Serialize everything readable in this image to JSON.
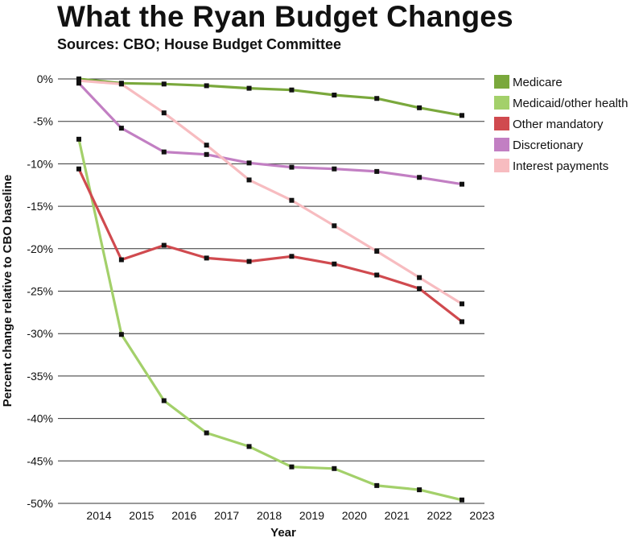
{
  "chart_data": {
    "type": "line",
    "title": "What the Ryan Budget Changes",
    "subtitle": "Sources: CBO;  House Budget Committee",
    "xlabel": "Year",
    "ylabel": "Percent change relative to CBO baseline",
    "x": [
      2014,
      2015,
      2016,
      2017,
      2018,
      2019,
      2020,
      2021,
      2022,
      2023
    ],
    "x_tick_labels": [
      "2014",
      "2015",
      "2016",
      "2017",
      "2018",
      "2019",
      "2020",
      "2021",
      "2022",
      "2023"
    ],
    "ylim": [
      -50,
      0
    ],
    "y_ticks": [
      0,
      -5,
      -10,
      -15,
      -20,
      -25,
      -30,
      -35,
      -40,
      -45,
      -50
    ],
    "y_tick_labels": [
      "0%",
      "-5%",
      "-10%",
      "-15%",
      "-20%",
      "-25%",
      "-30%",
      "-35%",
      "-40%",
      "-45%",
      "-50%"
    ],
    "grid": true,
    "legend_position": "top-right",
    "series": [
      {
        "name": "Medicare",
        "color": "#7aa83c",
        "values": [
          0,
          -0.5,
          -0.6,
          -0.8,
          -1.1,
          -1.3,
          -1.9,
          -2.3,
          -3.4,
          -4.3
        ]
      },
      {
        "name": "Medicaid/other health",
        "color": "#a3d06a",
        "values": [
          -7.1,
          -30.1,
          -37.9,
          -41.7,
          -43.3,
          -45.7,
          -45.9,
          -47.9,
          -48.4,
          -49.6
        ]
      },
      {
        "name": "Other mandatory",
        "color": "#d04a4f",
        "values": [
          -10.6,
          -21.3,
          -19.6,
          -21.1,
          -21.5,
          -20.9,
          -21.8,
          -23.1,
          -24.7,
          -28.6
        ]
      },
      {
        "name": "Discretionary",
        "color": "#c27fc3",
        "values": [
          -0.5,
          -5.8,
          -8.6,
          -8.9,
          -9.9,
          -10.4,
          -10.6,
          -10.9,
          -11.6,
          -12.4
        ]
      },
      {
        "name": "Interest payments",
        "color": "#f7bcc0",
        "values": [
          -0.2,
          -0.6,
          -4.0,
          -7.8,
          -11.9,
          -14.3,
          -17.3,
          -20.3,
          -23.4,
          -26.5
        ]
      }
    ]
  }
}
